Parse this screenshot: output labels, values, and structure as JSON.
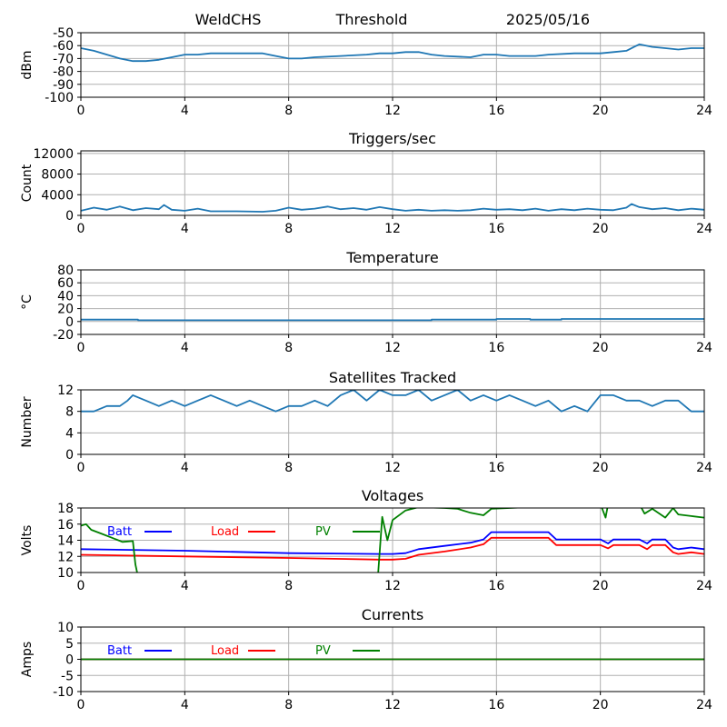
{
  "header": {
    "station": "WeldCHS",
    "mode": "Threshold",
    "date": "2025/05/16"
  },
  "chart_data": [
    {
      "id": "power",
      "type": "line",
      "title": "",
      "xlabel": "",
      "ylabel": "dBm",
      "xlim": [
        0,
        24
      ],
      "ylim": [
        -100,
        -50
      ],
      "xticks": [
        0,
        4,
        8,
        12,
        16,
        20,
        24
      ],
      "yticks": [
        -100,
        -90,
        -80,
        -70,
        -60,
        -50
      ],
      "grid": true,
      "series": [
        {
          "color": "#1f77b4",
          "x": [
            0,
            0.5,
            1,
            1.5,
            2,
            2.5,
            3,
            3.5,
            4,
            4.5,
            5,
            6,
            7,
            7.5,
            8,
            8.5,
            9,
            10,
            11,
            11.5,
            12,
            12.5,
            13,
            13.5,
            14,
            15,
            15.5,
            16,
            16.5,
            17,
            17.5,
            18,
            19,
            20,
            20.5,
            21,
            21.3,
            21.5,
            22,
            22.5,
            23,
            23.5,
            24
          ],
          "y": [
            -62,
            -64,
            -67,
            -70,
            -72,
            -72,
            -71,
            -69,
            -67,
            -67,
            -66,
            -66,
            -66,
            -68,
            -70,
            -70,
            -69,
            -68,
            -67,
            -66,
            -66,
            -65,
            -65,
            -67,
            -68,
            -69,
            -67,
            -67,
            -68,
            -68,
            -68,
            -67,
            -66,
            -66,
            -65,
            -64,
            -61,
            -59,
            -61,
            -62,
            -63,
            -62,
            -62
          ]
        }
      ]
    },
    {
      "id": "triggers",
      "type": "line",
      "title": "Triggers/sec",
      "xlabel": "",
      "ylabel": "Count",
      "xlim": [
        0,
        24
      ],
      "ylim": [
        0,
        12500
      ],
      "xticks": [
        0,
        4,
        8,
        12,
        16,
        20,
        24
      ],
      "yticks": [
        0,
        4000,
        8000,
        12000
      ],
      "grid": true,
      "series": [
        {
          "color": "#1f77b4",
          "x": [
            0,
            0.5,
            1,
            1.5,
            2,
            2.5,
            3,
            3.2,
            3.5,
            4,
            4.5,
            5,
            6,
            7,
            7.5,
            8,
            8.5,
            9,
            9.5,
            10,
            10.5,
            11,
            11.5,
            12,
            12.5,
            13,
            13.5,
            14,
            14.5,
            15,
            15.5,
            16,
            16.5,
            17,
            17.5,
            18,
            18.5,
            19,
            19.5,
            20,
            20.5,
            21,
            21.2,
            21.5,
            22,
            22.5,
            23,
            23.5,
            24
          ],
          "y": [
            900,
            1500,
            1100,
            1700,
            1000,
            1400,
            1200,
            2000,
            1100,
            900,
            1300,
            800,
            800,
            700,
            900,
            1500,
            1100,
            1300,
            1700,
            1200,
            1400,
            1100,
            1600,
            1200,
            900,
            1100,
            900,
            1000,
            900,
            1000,
            1300,
            1100,
            1200,
            1000,
            1300,
            900,
            1200,
            1000,
            1300,
            1100,
            1000,
            1500,
            2200,
            1600,
            1200,
            1400,
            1000,
            1300,
            1100
          ]
        }
      ]
    },
    {
      "id": "temperature",
      "type": "line",
      "title": "Temperature",
      "xlabel": "",
      "ylabel": "°C",
      "xlim": [
        0,
        24
      ],
      "ylim": [
        -20,
        80
      ],
      "xticks": [
        0,
        4,
        8,
        12,
        16,
        20,
        24
      ],
      "yticks": [
        -20,
        0,
        20,
        40,
        60,
        80
      ],
      "grid": true,
      "series": [
        {
          "color": "#1f77b4",
          "x": [
            0,
            2.2,
            2.2,
            13.5,
            13.5,
            16,
            16,
            17.3,
            17.3,
            18.5,
            18.5,
            24
          ],
          "y": [
            3,
            3,
            2,
            2,
            3,
            3,
            4,
            4,
            3,
            3,
            4,
            4
          ]
        }
      ]
    },
    {
      "id": "satellites",
      "type": "line",
      "title": "Satellites Tracked",
      "xlabel": "",
      "ylabel": "Number",
      "xlim": [
        0,
        24
      ],
      "ylim": [
        0,
        12
      ],
      "xticks": [
        0,
        4,
        8,
        12,
        16,
        20,
        24
      ],
      "yticks": [
        0,
        4,
        8,
        12
      ],
      "grid": true,
      "series": [
        {
          "color": "#1f77b4",
          "x": [
            0,
            0.5,
            1,
            1.5,
            1.8,
            2,
            2.5,
            3,
            3.5,
            4,
            4.5,
            5,
            5.5,
            6,
            6.5,
            7,
            7.5,
            8,
            8.5,
            9,
            9.5,
            10,
            10.5,
            11,
            11.5,
            12,
            12.5,
            13,
            13.5,
            14,
            14.5,
            15,
            15.5,
            16,
            16.5,
            17,
            17.5,
            18,
            18.5,
            19,
            19.5,
            20,
            20.5,
            21,
            21.5,
            22,
            22.5,
            23,
            23.5,
            24
          ],
          "y": [
            8,
            8,
            9,
            9,
            10,
            11,
            10,
            9,
            10,
            9,
            10,
            11,
            10,
            9,
            10,
            9,
            8,
            9,
            9,
            10,
            9,
            11,
            12,
            10,
            12,
            11,
            11,
            12,
            10,
            11,
            12,
            10,
            11,
            10,
            11,
            10,
            9,
            10,
            8,
            9,
            8,
            11,
            11,
            10,
            10,
            9,
            10,
            10,
            8,
            8
          ]
        }
      ]
    },
    {
      "id": "voltages",
      "type": "line",
      "title": "Voltages",
      "xlabel": "",
      "ylabel": "Volts",
      "xlim": [
        0,
        24
      ],
      "ylim": [
        10,
        18
      ],
      "xticks": [
        0,
        4,
        8,
        12,
        16,
        20,
        24
      ],
      "yticks": [
        10,
        12,
        14,
        16,
        18
      ],
      "grid": true,
      "legend": "top-left",
      "series": [
        {
          "name": "Batt",
          "color": "#0000ff",
          "x": [
            0,
            4,
            8,
            11.5,
            12,
            12.5,
            13,
            14,
            15,
            15.5,
            15.8,
            18,
            18.3,
            20,
            20.3,
            20.5,
            21,
            21.5,
            21.8,
            22,
            22.5,
            22.8,
            23,
            23.5,
            24
          ],
          "y": [
            12.9,
            12.7,
            12.4,
            12.3,
            12.3,
            12.4,
            12.9,
            13.3,
            13.7,
            14.1,
            15.0,
            15.0,
            14.1,
            14.1,
            13.6,
            14.1,
            14.1,
            14.1,
            13.6,
            14.1,
            14.1,
            13.1,
            12.9,
            13.1,
            12.9
          ]
        },
        {
          "name": "Load",
          "color": "#ff0000",
          "x": [
            0,
            4,
            8,
            11.5,
            12,
            12.5,
            13,
            14,
            15,
            15.5,
            15.8,
            18,
            18.3,
            20,
            20.3,
            20.5,
            21,
            21.5,
            21.8,
            22,
            22.5,
            22.8,
            23,
            23.5,
            24
          ],
          "y": [
            12.2,
            12.0,
            11.8,
            11.6,
            11.6,
            11.7,
            12.2,
            12.6,
            13.1,
            13.5,
            14.3,
            14.3,
            13.4,
            13.4,
            13.0,
            13.4,
            13.4,
            13.4,
            12.9,
            13.4,
            13.4,
            12.5,
            12.3,
            12.5,
            12.3
          ]
        },
        {
          "name": "PV",
          "color": "#008000",
          "x": [
            0,
            0.2,
            0.4,
            0.8,
            1.2,
            1.6,
            2.0,
            2.1,
            2.3,
            11.4,
            11.6,
            11.8,
            12.0,
            12.5,
            13.0,
            14.0,
            14.5,
            15.0,
            15.5,
            15.8,
            20.0,
            20.2,
            20.3,
            21.5,
            21.7,
            22.0,
            22.5,
            22.8,
            23.0,
            23.5,
            24
          ],
          "y": [
            15.8,
            16.0,
            15.3,
            14.8,
            14.3,
            13.8,
            13.9,
            11.0,
            8.0,
            8.0,
            16.9,
            14.0,
            16.5,
            17.7,
            18.1,
            18.0,
            17.9,
            17.4,
            17.1,
            17.9,
            18.5,
            16.8,
            18.5,
            18.5,
            17.3,
            17.9,
            16.8,
            18.0,
            17.2,
            17.0,
            16.8
          ]
        }
      ]
    },
    {
      "id": "currents",
      "type": "line",
      "title": "Currents",
      "xlabel": "",
      "ylabel": "Amps",
      "xlim": [
        0,
        24
      ],
      "ylim": [
        -10,
        10
      ],
      "xticks": [
        0,
        4,
        8,
        12,
        16,
        20,
        24
      ],
      "yticks": [
        -10,
        -5,
        0,
        5,
        10
      ],
      "grid": true,
      "legend": "top-left",
      "series": [
        {
          "name": "Batt",
          "color": "#0000ff",
          "x": [
            0,
            24
          ],
          "y": [
            0,
            0
          ]
        },
        {
          "name": "Load",
          "color": "#ff0000",
          "x": [
            0,
            24
          ],
          "y": [
            0,
            0
          ]
        },
        {
          "name": "PV",
          "color": "#008000",
          "x": [
            0,
            24
          ],
          "y": [
            0,
            0
          ]
        }
      ]
    }
  ]
}
